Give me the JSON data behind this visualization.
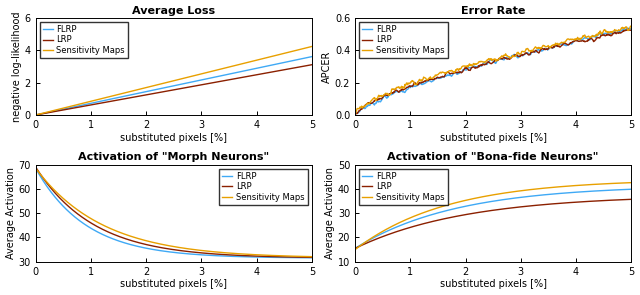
{
  "title_tl": "Average Loss",
  "title_tr": "Error Rate",
  "title_bl": "Activation of \"Morph Neurons\"",
  "title_br": "Activation of \"Bona-fide Neurons\"",
  "xlabel": "substituted pixels [%]",
  "ylabel_tl": "negative log-likelihood",
  "ylabel_tr": "APCER",
  "ylabel_bl": "Average Activation",
  "ylabel_br": "Average Activation",
  "legend_labels": [
    "FLRP",
    "LRP",
    "Sensitivity Maps"
  ],
  "colors": {
    "FLRP": "#3FA9F5",
    "LRP": "#8B2000",
    "Sensitivity": "#E8A000"
  },
  "xlim": [
    0,
    5
  ],
  "ylim_tl": [
    0,
    6
  ],
  "ylim_tr": [
    0,
    0.6
  ],
  "ylim_bl": [
    30,
    70
  ],
  "ylim_br": [
    10,
    50
  ],
  "x_ticks": [
    0,
    1,
    2,
    3,
    4,
    5
  ],
  "yticks_tl": [
    0,
    2,
    4,
    6
  ],
  "yticks_tr": [
    0,
    0.2,
    0.4,
    0.6
  ],
  "yticks_bl": [
    30,
    40,
    50,
    60,
    70
  ],
  "yticks_br": [
    10,
    20,
    30,
    40,
    50
  ],
  "bg_color": "#FFFFFF"
}
